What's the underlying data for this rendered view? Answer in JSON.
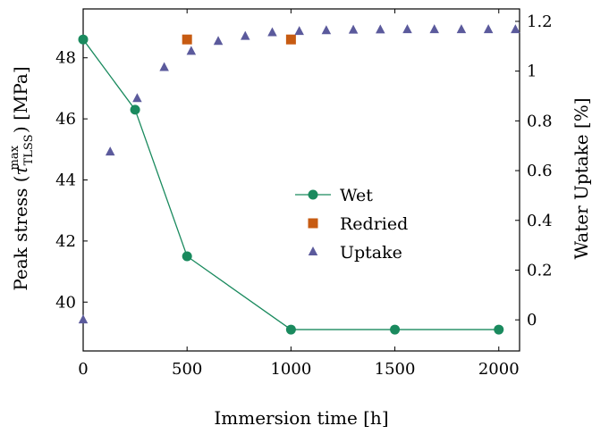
{
  "chart_data": {
    "type": "line",
    "xlabel": "Immersion time [h]",
    "ylabel_left": "Peak stress (τ_TLSS^max) [MPa]",
    "ylabel_left_parts": {
      "prefix": "Peak stress (",
      "symbol": "τ",
      "superscript": "max",
      "subscript": "TLSS",
      "suffix": ") [MPa]"
    },
    "ylabel_right": "Water Uptake [%]",
    "xlim": [
      0,
      2100
    ],
    "ylim_left": [
      38.4,
      49.6
    ],
    "ylim_right": [
      -0.125,
      1.25
    ],
    "x_ticks": [
      0,
      500,
      1000,
      1500,
      2000
    ],
    "y_left_ticks": [
      40,
      42,
      44,
      46,
      48
    ],
    "y_right_ticks": [
      0,
      0.2,
      0.4,
      0.6,
      0.8,
      1,
      1.2
    ],
    "x_tick_labels": [
      "0",
      "500",
      "1000",
      "1500",
      "2000"
    ],
    "y_left_tick_labels": [
      "40",
      "42",
      "44",
      "46",
      "48"
    ],
    "y_right_tick_labels": [
      "0",
      "0.2",
      "0.4",
      "0.6",
      "0.8",
      "1",
      "1.2"
    ],
    "grid": false,
    "legend_position": "center-right",
    "series": [
      {
        "name": "Wet",
        "axis": "left",
        "marker": "circle",
        "line": true,
        "color": "#1a8a5e",
        "x": [
          0,
          250,
          500,
          1000,
          1500,
          2000
        ],
        "y": [
          48.6,
          46.3,
          41.5,
          39.1,
          39.1,
          39.1
        ]
      },
      {
        "name": "Redried",
        "axis": "left",
        "marker": "square",
        "line": false,
        "color": "#c75b12",
        "x": [
          500,
          1000
        ],
        "y": [
          48.6,
          48.6
        ]
      },
      {
        "name": "Uptake",
        "axis": "right",
        "marker": "triangle",
        "line": false,
        "color": "#5b5a9c",
        "x": [
          0,
          130,
          260,
          390,
          520,
          650,
          780,
          910,
          1040,
          1170,
          1300,
          1430,
          1560,
          1690,
          1820,
          1950,
          2080
        ],
        "y": [
          0.0,
          0.675,
          0.89,
          1.015,
          1.08,
          1.12,
          1.14,
          1.155,
          1.16,
          1.163,
          1.165,
          1.166,
          1.167,
          1.167,
          1.167,
          1.167,
          1.167
        ]
      }
    ]
  }
}
